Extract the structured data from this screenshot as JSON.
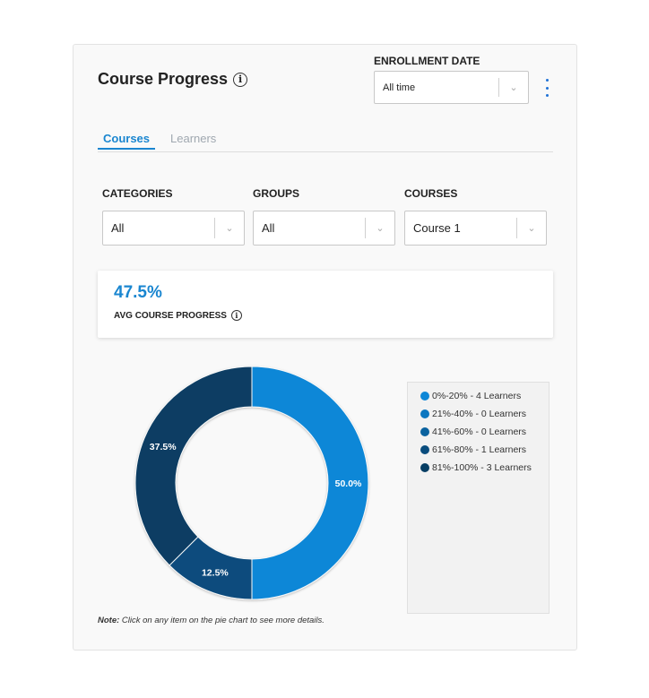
{
  "header": {
    "title": "Course Progress",
    "info_icon": "info-circle-icon",
    "enrollment_label": "ENROLLMENT DATE",
    "enrollment_value": "All time",
    "menu_icon": "kebab-menu-icon"
  },
  "tabs": [
    {
      "label": "Courses",
      "active": true
    },
    {
      "label": "Learners",
      "active": false
    }
  ],
  "filters": [
    {
      "label": "CATEGORIES",
      "value": "All"
    },
    {
      "label": "GROUPS",
      "value": "All"
    },
    {
      "label": "COURSES",
      "value": "Course 1"
    }
  ],
  "stat": {
    "value": "47.5%",
    "label": "AVG COURSE PROGRESS"
  },
  "colors": {
    "accent": "#1a86d0",
    "segments": [
      "#0d87d7",
      "#0a76c0",
      "#0a629f",
      "#094c7d",
      "#073e64"
    ]
  },
  "chart_data": {
    "type": "pie",
    "donut": true,
    "categories": [
      "0%-20%",
      "21%-40%",
      "41%-60%",
      "61%-80%",
      "81%-100%"
    ],
    "values": [
      50.0,
      0,
      0,
      12.5,
      37.5
    ],
    "data_labels": [
      "50.0%",
      "",
      "",
      "12.5%",
      "37.5%"
    ],
    "legend": [
      "0%-20% - 4 Learners",
      "21%-40% - 0 Learners",
      "41%-60% - 0 Learners",
      "61%-80% - 1 Learners",
      "81%-100% - 3 Learners"
    ],
    "legend_position": "right"
  },
  "note": {
    "prefix": "Note:",
    "text": " Click on any item on the pie chart to see more details."
  }
}
